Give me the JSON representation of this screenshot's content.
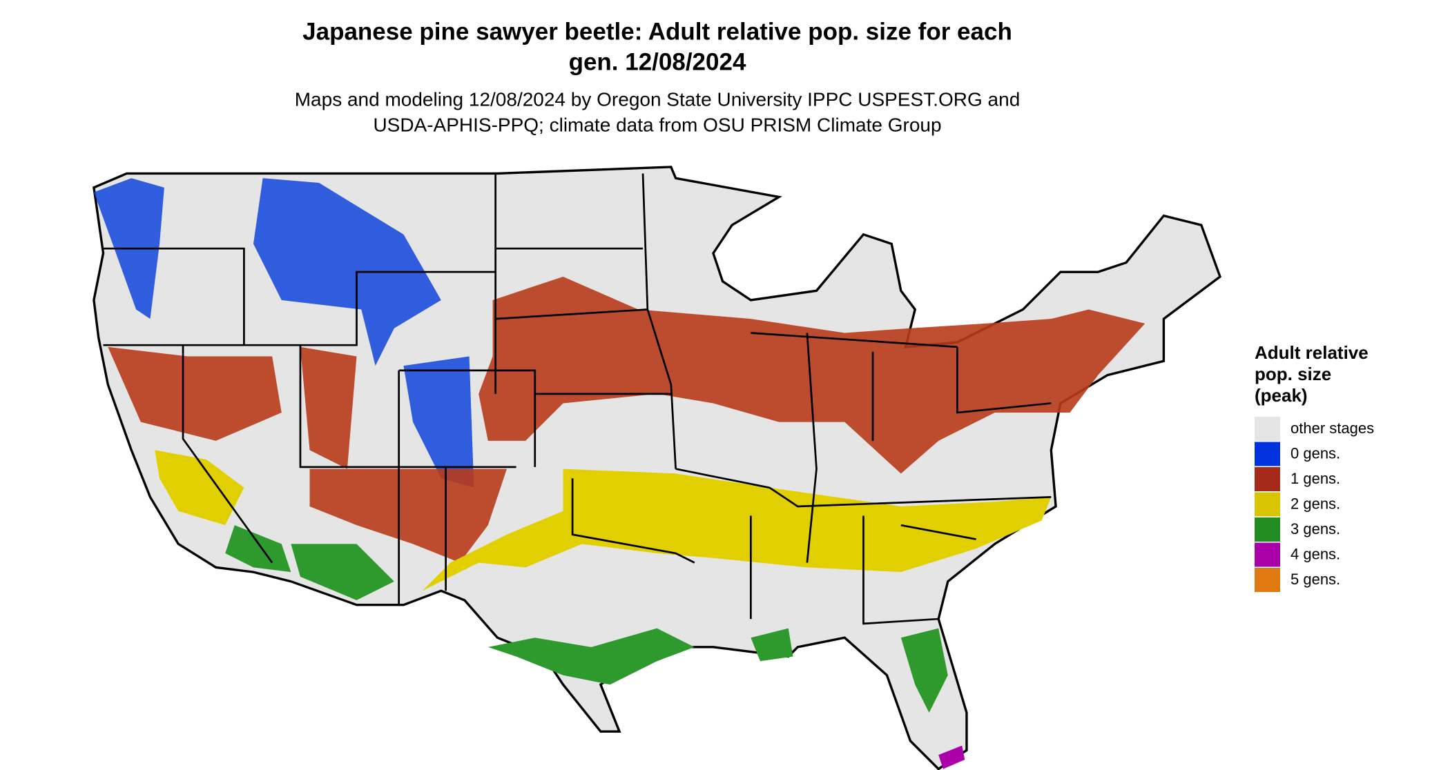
{
  "header": {
    "title_lines": [
      "Japanese pine sawyer beetle: Adult relative pop. size for each",
      "gen. 12/08/2024"
    ],
    "subtitle_lines": [
      "Maps and modeling 12/08/2024 by Oregon State University IPPC USPEST.ORG and",
      "USDA-APHIS-PPQ; climate data from OSU PRISM Climate Group"
    ]
  },
  "legend": {
    "title_lines": [
      "Adult relative",
      "pop. size",
      "(peak)"
    ],
    "items": [
      {
        "label": "other stages",
        "color": "#e5e5e5"
      },
      {
        "label": "0 gens.",
        "color": "#0033dd"
      },
      {
        "label": "1 gens.",
        "color": "#a52a1a"
      },
      {
        "label": "2 gens.",
        "color": "#d8c400"
      },
      {
        "label": "3 gens.",
        "color": "#228b22"
      },
      {
        "label": "4 gens.",
        "color": "#aa00aa"
      },
      {
        "label": "5 gens.",
        "color": "#e07a10"
      }
    ]
  }
}
